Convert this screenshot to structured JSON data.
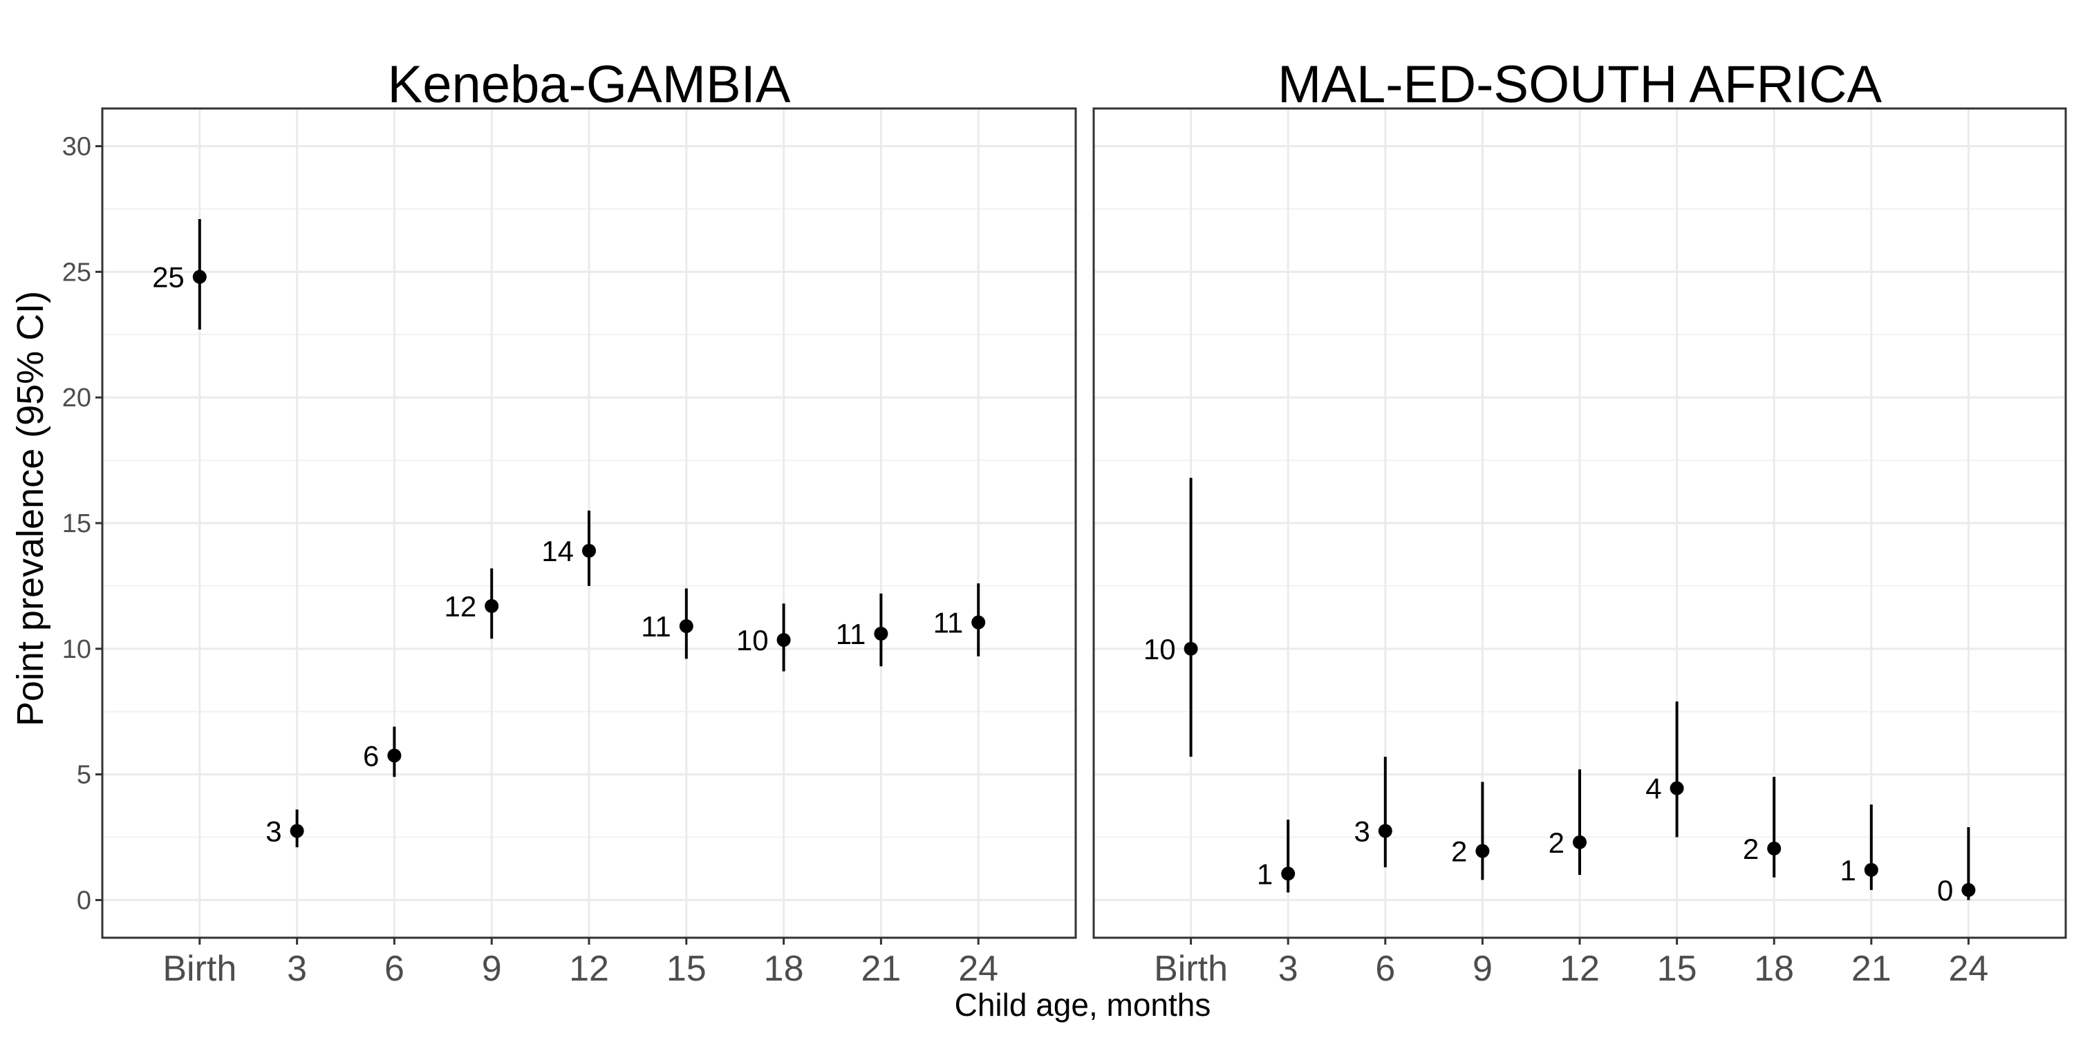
{
  "chart_data": {
    "type": "scatter",
    "ylabel": "Point prevalence (95% CI)",
    "xlabel": "Child age, months",
    "categories": [
      "Birth",
      "3",
      "6",
      "9",
      "12",
      "15",
      "18",
      "21",
      "24"
    ],
    "ylim": [
      -1.5,
      31.5
    ],
    "yticks": [
      0,
      5,
      10,
      15,
      20,
      25,
      30
    ],
    "grid": true,
    "error_bars": true,
    "panels": [
      {
        "title": "Keneba-GAMBIA",
        "points": [
          {
            "x": "Birth",
            "y": 24.8,
            "lower": 22.7,
            "upper": 27.1,
            "label": "25"
          },
          {
            "x": "3",
            "y": 2.75,
            "lower": 2.1,
            "upper": 3.6,
            "label": "3"
          },
          {
            "x": "6",
            "y": 5.75,
            "lower": 4.9,
            "upper": 6.9,
            "label": "6"
          },
          {
            "x": "9",
            "y": 11.7,
            "lower": 10.4,
            "upper": 13.2,
            "label": "12"
          },
          {
            "x": "12",
            "y": 13.9,
            "lower": 12.5,
            "upper": 15.5,
            "label": "14"
          },
          {
            "x": "15",
            "y": 10.9,
            "lower": 9.6,
            "upper": 12.4,
            "label": "11"
          },
          {
            "x": "18",
            "y": 10.35,
            "lower": 9.1,
            "upper": 11.8,
            "label": "10"
          },
          {
            "x": "21",
            "y": 10.6,
            "lower": 9.3,
            "upper": 12.2,
            "label": "11"
          },
          {
            "x": "24",
            "y": 11.05,
            "lower": 9.7,
            "upper": 12.6,
            "label": "11"
          }
        ]
      },
      {
        "title": "MAL-ED-SOUTH AFRICA",
        "points": [
          {
            "x": "Birth",
            "y": 10.0,
            "lower": 5.7,
            "upper": 16.8,
            "label": "10"
          },
          {
            "x": "3",
            "y": 1.05,
            "lower": 0.3,
            "upper": 3.2,
            "label": "1"
          },
          {
            "x": "6",
            "y": 2.75,
            "lower": 1.3,
            "upper": 5.7,
            "label": "3"
          },
          {
            "x": "9",
            "y": 1.95,
            "lower": 0.8,
            "upper": 4.7,
            "label": "2"
          },
          {
            "x": "12",
            "y": 2.3,
            "lower": 1.0,
            "upper": 5.2,
            "label": "2"
          },
          {
            "x": "15",
            "y": 4.45,
            "lower": 2.5,
            "upper": 7.9,
            "label": "4"
          },
          {
            "x": "18",
            "y": 2.05,
            "lower": 0.9,
            "upper": 4.9,
            "label": "2"
          },
          {
            "x": "21",
            "y": 1.2,
            "lower": 0.4,
            "upper": 3.8,
            "label": "1"
          },
          {
            "x": "24",
            "y": 0.4,
            "lower": 0.0,
            "upper": 2.9,
            "label": "0"
          }
        ]
      }
    ]
  }
}
